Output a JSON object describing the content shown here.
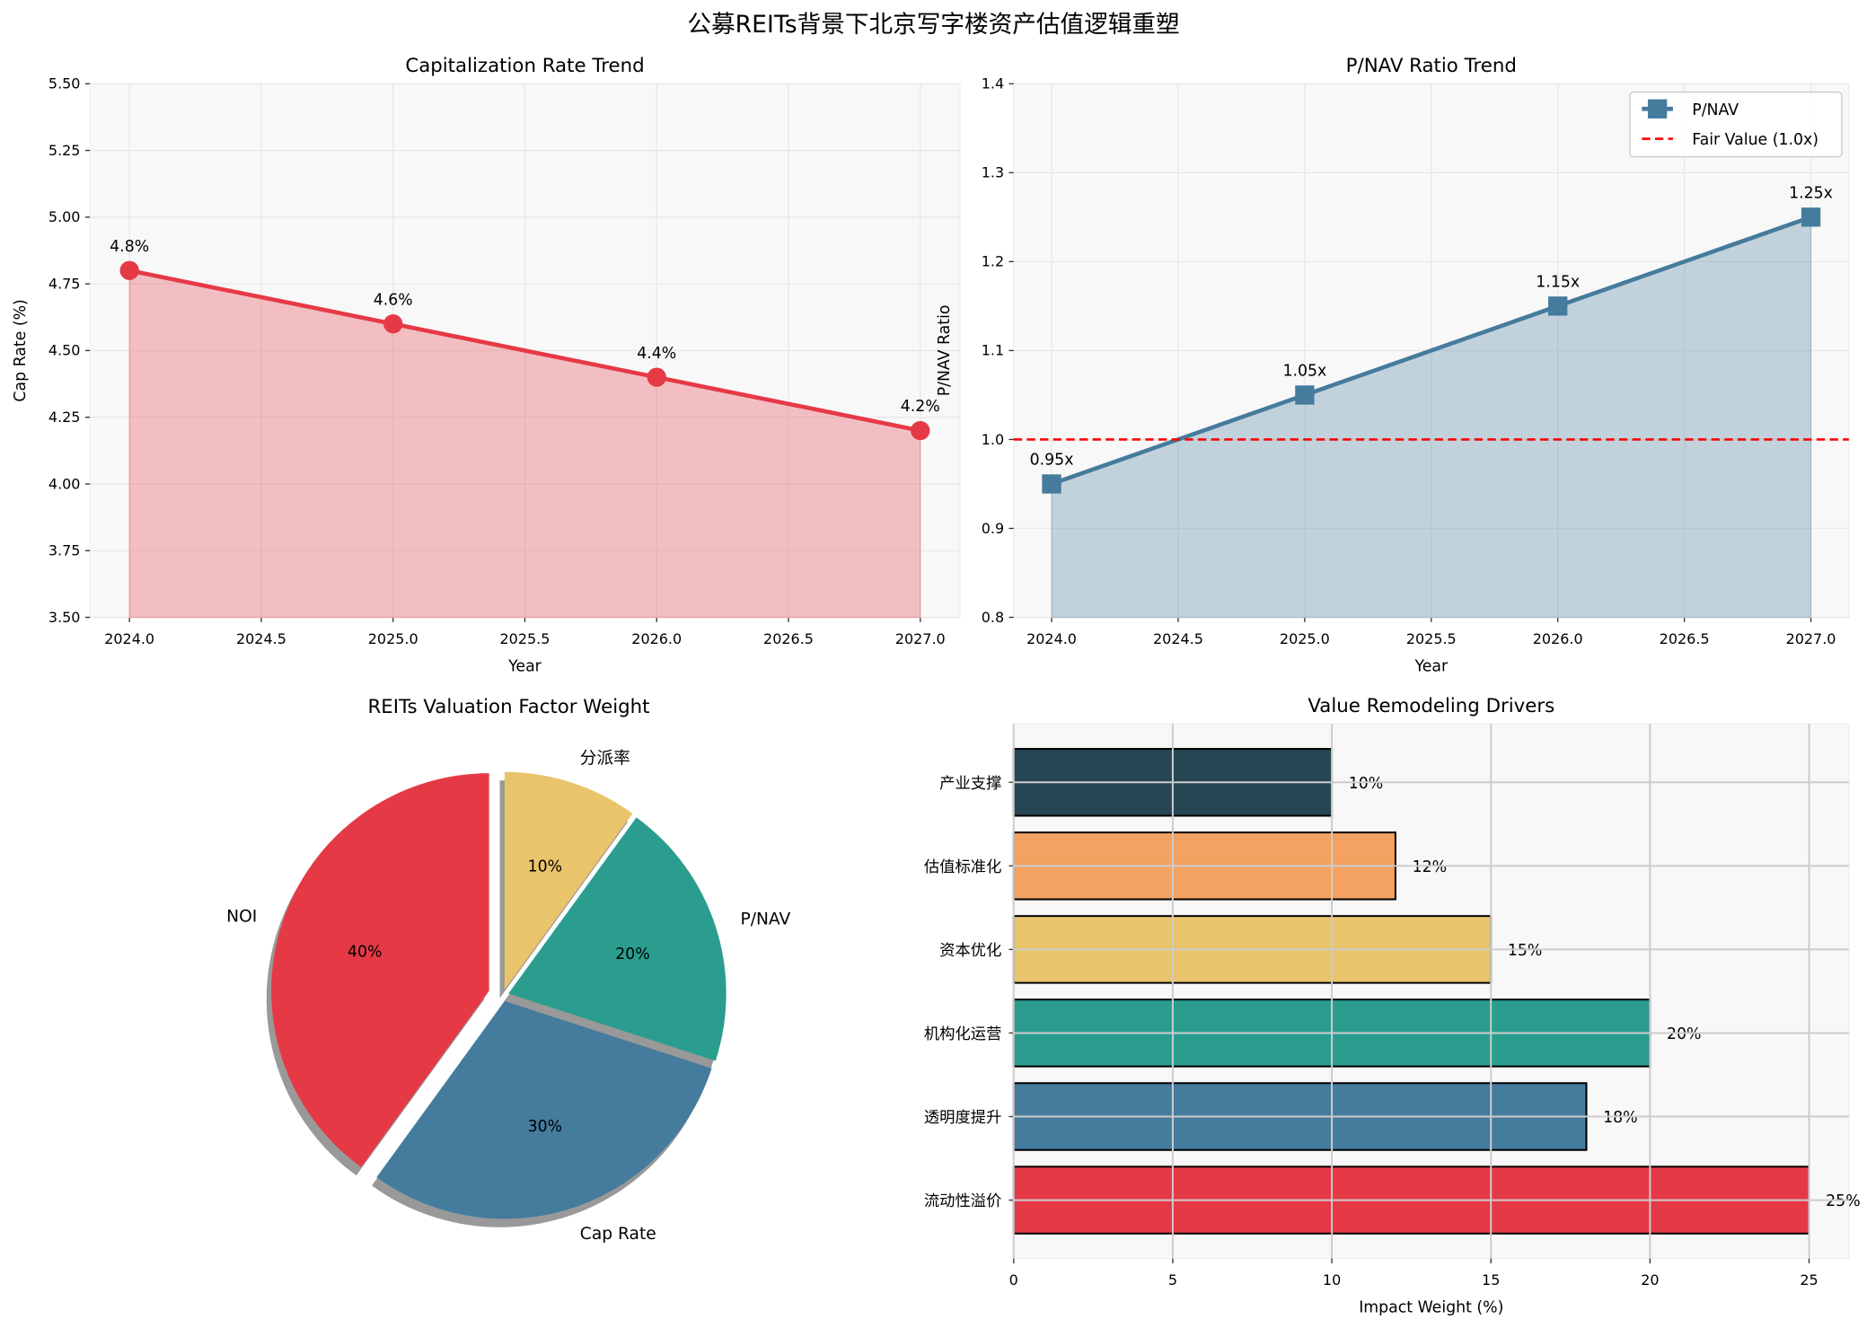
{
  "title": "公募REITs背景下北京写字楼资产估值逻辑重塑",
  "colors": {
    "red": "#e63946",
    "blue": "#457b9d",
    "teal": "#2a9d8f",
    "yellow": "#e9c46a",
    "orange": "#f4a261",
    "dark": "#264653",
    "fair": "#ff0000",
    "axes_bg": "#f8f8f8"
  },
  "chart_data": [
    {
      "type": "area",
      "title": "Capitalization Rate Trend",
      "xlabel": "Year",
      "ylabel": "Cap Rate (%)",
      "x": [
        2024,
        2025,
        2026,
        2027
      ],
      "values": [
        4.8,
        4.6,
        4.4,
        4.2
      ],
      "data_labels": [
        "4.8%",
        "4.6%",
        "4.4%",
        "4.2%"
      ],
      "xlim": [
        2023.85,
        2027.15
      ],
      "ylim": [
        3.5,
        5.5
      ],
      "xticks": [
        "2024.0",
        "2024.5",
        "2025.0",
        "2025.5",
        "2026.0",
        "2026.5",
        "2027.0"
      ],
      "yticks": [
        "3.50",
        "3.75",
        "4.00",
        "4.25",
        "4.50",
        "4.75",
        "5.00",
        "5.25",
        "5.50"
      ],
      "grid": true,
      "color": "#e63946"
    },
    {
      "type": "area",
      "title": "P/NAV Ratio Trend",
      "xlabel": "Year",
      "ylabel": "P/NAV Ratio",
      "x": [
        2024,
        2025,
        2026,
        2027
      ],
      "series": [
        {
          "name": "P/NAV",
          "values": [
            0.95,
            1.05,
            1.15,
            1.25
          ]
        }
      ],
      "data_labels": [
        "0.95x",
        "1.05x",
        "1.15x",
        "1.25x"
      ],
      "reference_line": {
        "name": "Fair Value (1.0x)",
        "y": 1.0
      },
      "xlim": [
        2023.85,
        2027.15
      ],
      "ylim": [
        0.8,
        1.4
      ],
      "xticks": [
        "2024.0",
        "2024.5",
        "2025.0",
        "2025.5",
        "2026.0",
        "2026.5",
        "2027.0"
      ],
      "yticks": [
        "0.8",
        "0.9",
        "1.0",
        "1.1",
        "1.2",
        "1.3",
        "1.4"
      ],
      "legend": "top-right",
      "grid": true,
      "color": "#457b9d"
    },
    {
      "type": "pie",
      "title": "REITs Valuation Factor Weight",
      "categories": [
        "NOI",
        "Cap Rate",
        "P/NAV",
        "分派率"
      ],
      "values": [
        40,
        30,
        20,
        10
      ],
      "data_labels": [
        "40%",
        "30%",
        "20%",
        "10%"
      ],
      "colors": [
        "#e63946",
        "#457b9d",
        "#2a9d8f",
        "#e9c46a"
      ],
      "start_angle": 90,
      "shadow": true,
      "exploded": [
        "NOI"
      ]
    },
    {
      "type": "bar",
      "orientation": "horizontal",
      "title": "Value Remodeling Drivers",
      "xlabel": "Impact Weight (%)",
      "categories": [
        "流动性溢价",
        "透明度提升",
        "机构化运营",
        "资本优化",
        "估值标准化",
        "产业支撑"
      ],
      "values": [
        25,
        18,
        20,
        15,
        12,
        10
      ],
      "data_labels": [
        "25%",
        "18%",
        "20%",
        "15%",
        "12%",
        "10%"
      ],
      "colors": [
        "#e63946",
        "#457b9d",
        "#2a9d8f",
        "#e9c46a",
        "#f4a261",
        "#264653"
      ],
      "xlim": [
        0,
        26.25
      ],
      "xticks": [
        "0",
        "5",
        "10",
        "15",
        "20",
        "25"
      ],
      "grid": true
    }
  ]
}
